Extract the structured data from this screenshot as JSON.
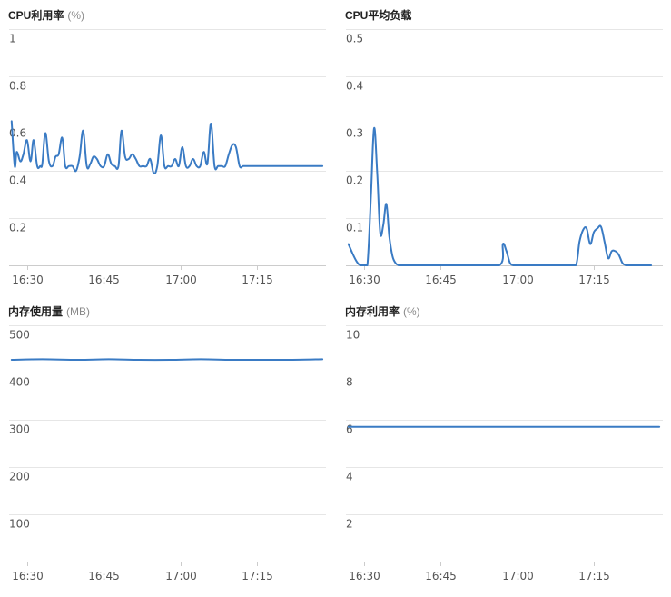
{
  "series_color": "#3a7bc4",
  "chart_data": [
    {
      "type": "line",
      "title": "CPU利用率",
      "unit": "(%)",
      "ylim": [
        0,
        1
      ],
      "y_ticks": [
        0.2,
        0.4,
        0.6,
        0.8,
        1
      ],
      "y_tick_labels": [
        "0.2",
        "0.4",
        "0.6",
        "0.8",
        "1"
      ],
      "x_tick_labels": [
        "16:30",
        "16:45",
        "17:00",
        "17:15"
      ],
      "x_tick_times": [
        30,
        45,
        60,
        75
      ],
      "xlim": [
        26.5,
        88.5
      ],
      "grid": true,
      "series": [
        {
          "x": [
            27,
            27.6,
            28,
            28.7,
            29.3,
            30,
            30.7,
            31.3,
            32,
            32.6,
            33,
            33.6,
            34.3,
            35,
            35.6,
            36.2,
            36.9,
            37.5,
            38.2,
            38.9,
            39.6,
            40.3,
            41,
            41.7,
            42.4,
            43,
            43.7,
            44.4,
            45.1,
            45.8,
            46.5,
            47.2,
            47.9,
            48.5,
            49.2,
            49.9,
            50.6,
            51.3,
            52,
            52.7,
            53.4,
            54.1,
            54.8,
            55.5,
            56.2,
            56.9,
            57.6,
            58.3,
            59,
            59.7,
            60.4,
            61.1,
            61.8,
            62.5,
            63.2,
            63.9,
            64.6,
            65.3,
            66,
            66.7,
            67.4,
            68.1,
            68.8,
            69.5,
            70.2,
            70.9,
            71.6,
            72.3,
            73,
            73.7,
            74.4,
            75.1,
            75.8,
            76.5,
            77.2,
            77.9,
            78.6,
            79.3,
            80,
            80.7,
            81.4,
            82.1,
            82.8,
            83.5,
            84.2,
            84.9,
            85.6,
            86.3,
            87,
            87.8
          ],
          "values": [
            0.61,
            0.42,
            0.48,
            0.44,
            0.47,
            0.53,
            0.44,
            0.53,
            0.42,
            0.42,
            0.43,
            0.56,
            0.44,
            0.42,
            0.46,
            0.47,
            0.54,
            0.42,
            0.42,
            0.42,
            0.4,
            0.46,
            0.57,
            0.42,
            0.43,
            0.46,
            0.45,
            0.42,
            0.42,
            0.47,
            0.43,
            0.42,
            0.42,
            0.57,
            0.46,
            0.45,
            0.47,
            0.45,
            0.42,
            0.42,
            0.42,
            0.45,
            0.39,
            0.42,
            0.55,
            0.42,
            0.42,
            0.42,
            0.45,
            0.42,
            0.5,
            0.42,
            0.42,
            0.45,
            0.42,
            0.42,
            0.48,
            0.43,
            0.6,
            0.42,
            0.42,
            0.42,
            0.42,
            0.47,
            0.51,
            0.5,
            0.42,
            0.42,
            0.42,
            0.42,
            0.42,
            0.42,
            0.42,
            0.42,
            0.42,
            0.42,
            0.42,
            0.42,
            0.42,
            0.42,
            0.42,
            0.42,
            0.42,
            0.42,
            0.42,
            0.42,
            0.42,
            0.42,
            0.42,
            0.42
          ]
        }
      ]
    },
    {
      "type": "line",
      "title": "CPU平均负载",
      "unit": "",
      "ylim": [
        0,
        0.5
      ],
      "y_ticks": [
        0.1,
        0.2,
        0.3,
        0.4,
        0.5
      ],
      "y_tick_labels": [
        "0.1",
        "0.2",
        "0.3",
        "0.4",
        "0.5"
      ],
      "x_tick_labels": [
        "16:30",
        "16:45",
        "17:00",
        "17:15"
      ],
      "x_tick_times": [
        30,
        45,
        60,
        75
      ],
      "xlim": [
        26.5,
        88.5
      ],
      "grid": true,
      "series": [
        {
          "x": [
            27,
            27.8,
            28.6,
            29.3,
            30,
            30.7,
            31.4,
            32,
            32.6,
            33.2,
            33.8,
            34.4,
            35,
            35.6,
            36.2,
            36.8,
            37.5,
            38.2,
            40,
            45,
            50,
            56.5,
            57.2,
            57.9,
            58.6,
            59.3,
            60,
            65,
            70,
            71.5,
            72.2,
            72.9,
            73.6,
            74.3,
            75,
            75.7,
            76.4,
            77.1,
            77.8,
            78.5,
            79.2,
            79.9,
            80.6,
            81.3,
            82,
            82.7,
            83.4,
            84.1,
            84.8,
            85.5,
            86.2
          ],
          "values": [
            0.045,
            0.025,
            0.008,
            0.0,
            0.0,
            0.0,
            0.15,
            0.29,
            0.2,
            0.07,
            0.085,
            0.13,
            0.06,
            0.02,
            0.005,
            0.0,
            0.0,
            0.0,
            0.0,
            0.0,
            0.0,
            0.0,
            0.045,
            0.03,
            0.005,
            0.0,
            0.0,
            0.0,
            0.0,
            0.0,
            0.05,
            0.075,
            0.078,
            0.045,
            0.07,
            0.078,
            0.082,
            0.05,
            0.015,
            0.03,
            0.03,
            0.022,
            0.005,
            0.0,
            0.0,
            0.0,
            0.0,
            0.0,
            0.0,
            0.0,
            0.0
          ]
        }
      ]
    },
    {
      "type": "line",
      "title": "内存使用量",
      "unit": "(MB)",
      "ylim": [
        0,
        500
      ],
      "y_ticks": [
        100,
        200,
        300,
        400,
        500
      ],
      "y_tick_labels": [
        "100",
        "200",
        "300",
        "400",
        "500"
      ],
      "x_tick_labels": [
        "16:30",
        "16:45",
        "17:00",
        "17:15"
      ],
      "x_tick_times": [
        30,
        45,
        60,
        75
      ],
      "xlim": [
        26.5,
        88.5
      ],
      "grid": true,
      "series": [
        {
          "x": [
            27,
            33,
            40,
            46,
            52,
            58,
            64,
            70,
            76,
            82,
            87.8
          ],
          "values": [
            427,
            428,
            427,
            428,
            427,
            427,
            428,
            427,
            427,
            427,
            428
          ]
        }
      ]
    },
    {
      "type": "line",
      "title": "内存利用率",
      "unit": "(%)",
      "ylim": [
        0,
        10
      ],
      "y_ticks": [
        2,
        4,
        6,
        8,
        10
      ],
      "y_tick_labels": [
        "2",
        "4",
        "6",
        "8",
        "10"
      ],
      "x_tick_labels": [
        "16:30",
        "16:45",
        "17:00",
        "17:15"
      ],
      "x_tick_times": [
        30,
        45,
        60,
        75
      ],
      "xlim": [
        26.5,
        88.5
      ],
      "grid": true,
      "series": [
        {
          "x": [
            27,
            40,
            55,
            70,
            87.8
          ],
          "values": [
            5.7,
            5.7,
            5.7,
            5.7,
            5.7
          ]
        }
      ]
    }
  ]
}
